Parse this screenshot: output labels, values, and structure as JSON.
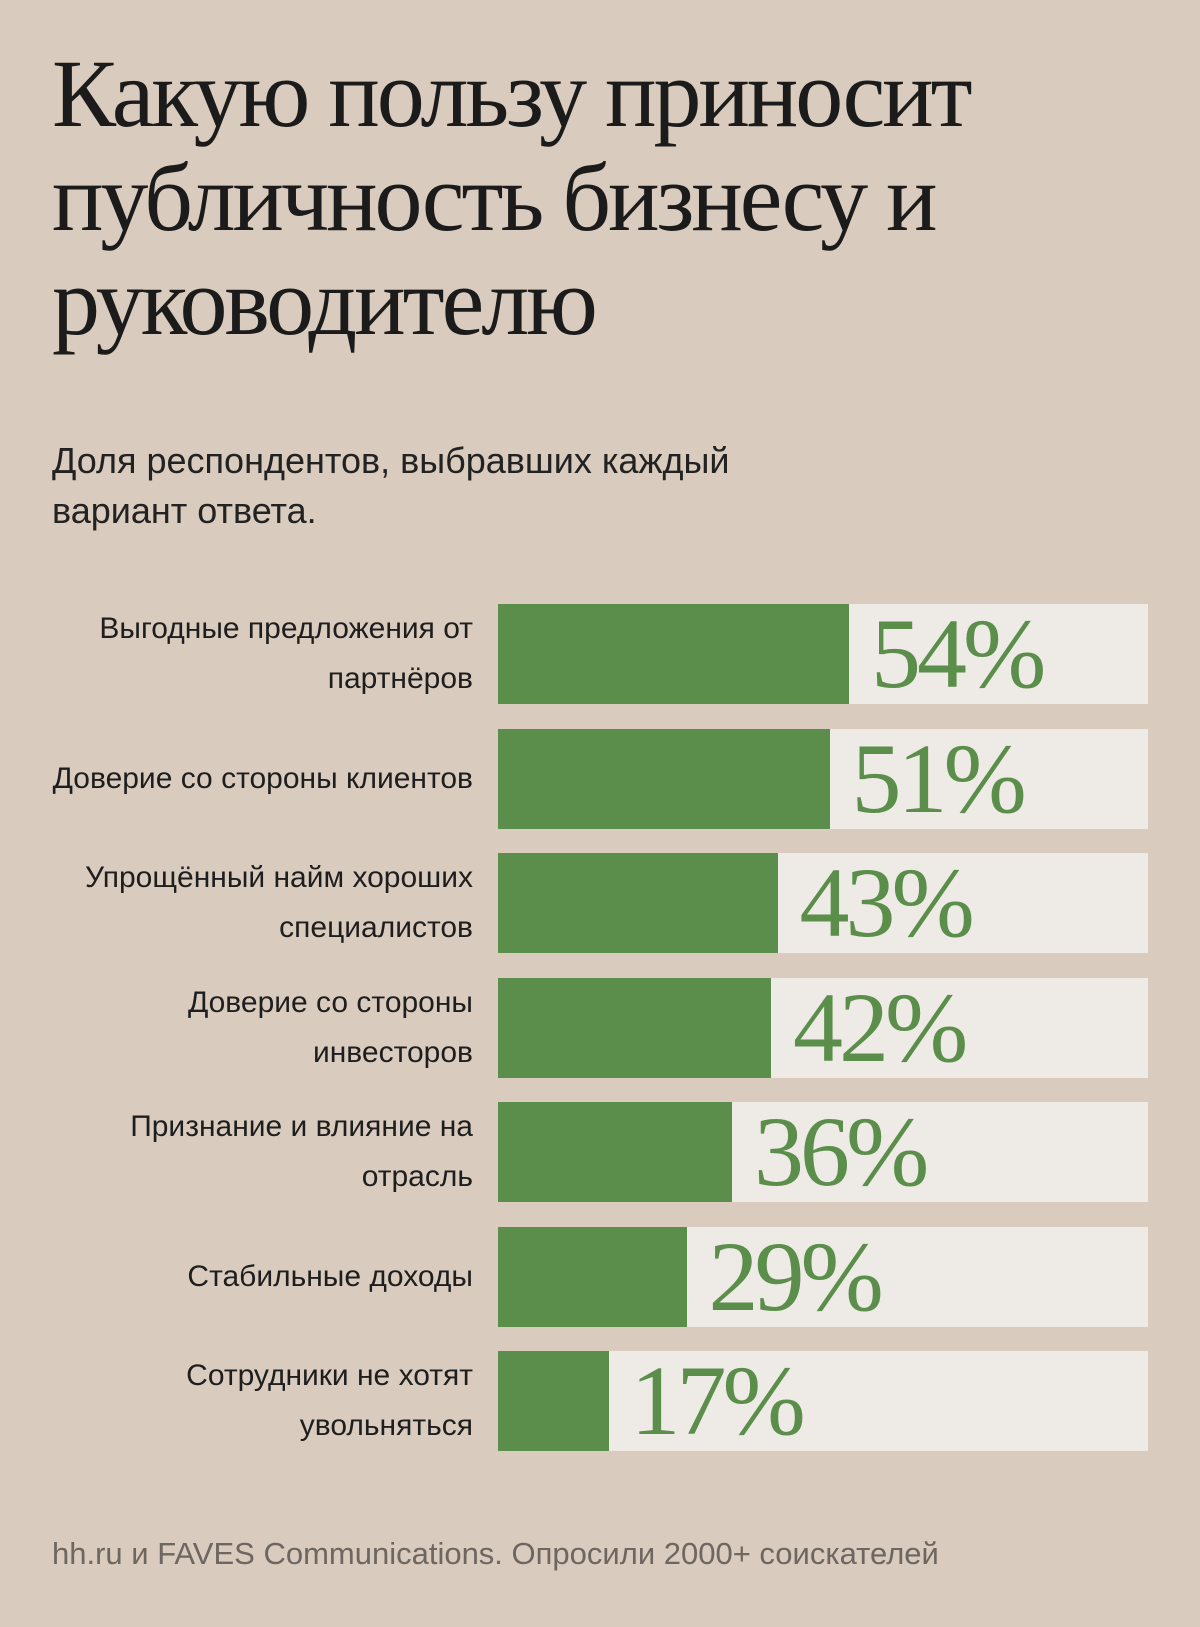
{
  "title": "Какую пользу приносит публичность бизнесу и руководителю",
  "subtitle": "Доля респондентов, выбравших каждый вариант ответа.",
  "source": "hh.ru и FAVES Communications. Опросили 2000+ соискателей",
  "colors": {
    "background": "#d9cbbd",
    "bar": "#5b8e4a",
    "track": "#eeeae5",
    "text": "#1b1b1b"
  },
  "chart_data": {
    "type": "bar",
    "orientation": "horizontal",
    "xlim": [
      0,
      100
    ],
    "categories": [
      "Выгодные предложения от партнёров",
      "Доверие со стороны клиентов",
      "Упрощённый найм хороших специалистов",
      "Доверие со стороны инвесторов",
      "Признание и влияние на отрасль",
      "Стабильные доходы",
      "Сотрудники не хотят увольняться"
    ],
    "values": [
      54,
      51,
      43,
      42,
      36,
      29,
      17
    ],
    "value_labels": [
      "54%",
      "51%",
      "43%",
      "42%",
      "36%",
      "29%",
      "17%"
    ]
  }
}
